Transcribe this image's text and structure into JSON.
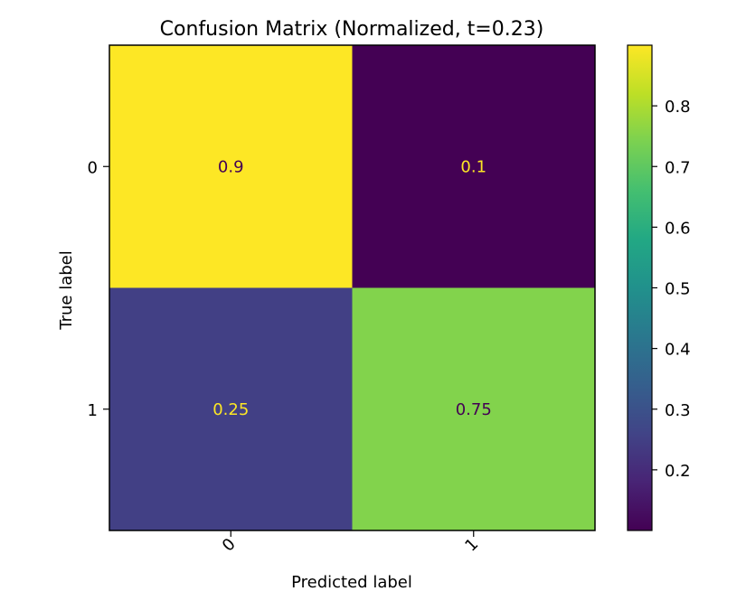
{
  "chart_data": {
    "type": "heatmap",
    "title": "Confusion Matrix (Normalized, t=0.23)",
    "xlabel": "Predicted label",
    "ylabel": "True label",
    "x_categories": [
      "0",
      "1"
    ],
    "y_categories": [
      "0",
      "1"
    ],
    "values": [
      [
        0.9,
        0.1
      ],
      [
        0.25,
        0.75
      ]
    ],
    "cell_labels": [
      [
        "0.9",
        "0.1"
      ],
      [
        "0.25",
        "0.75"
      ]
    ],
    "colormap": "viridis",
    "colorbar": {
      "range": [
        0.1,
        0.9
      ],
      "ticks": [
        0.2,
        0.3,
        0.4,
        0.5,
        0.6,
        0.7,
        0.8
      ],
      "tick_labels": [
        "0.2",
        "0.3",
        "0.4",
        "0.5",
        "0.6",
        "0.7",
        "0.8"
      ]
    },
    "x_tick_rotation": "rotated 45 degrees",
    "grid": false,
    "colors": {
      "viridis_low": "#440154",
      "viridis_high": "#fde725",
      "text_on_dark": "#fde725",
      "text_on_light": "#440154"
    }
  }
}
